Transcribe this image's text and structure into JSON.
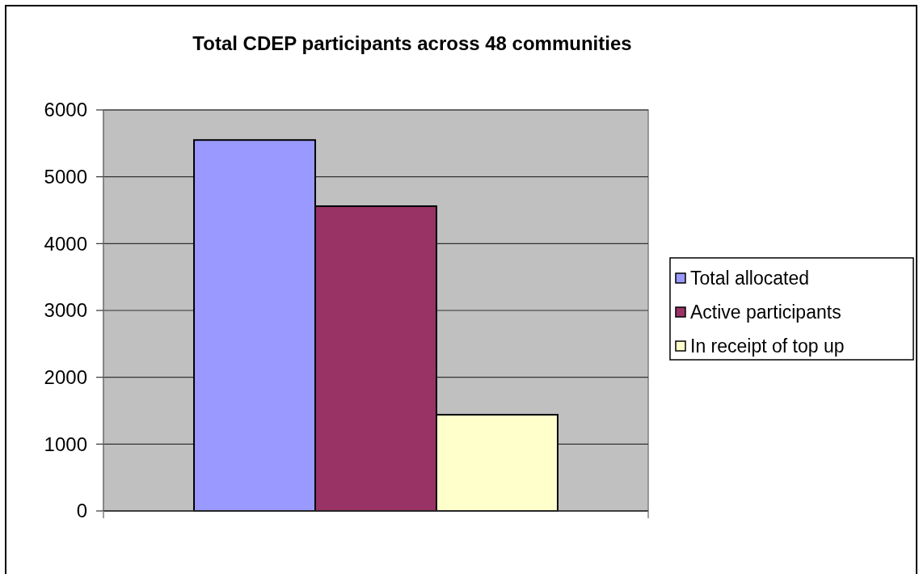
{
  "chart_data": {
    "type": "bar",
    "title": "Total CDEP participants across 48 communities",
    "categories": [
      null
    ],
    "series": [
      {
        "name": "Total allocated",
        "color": "#9999ff",
        "values": [
          5550
        ]
      },
      {
        "name": "Active participants",
        "color": "#993366",
        "values": [
          4560
        ]
      },
      {
        "name": "In receipt of top up",
        "color": "#ffffcc",
        "values": [
          1440
        ]
      }
    ],
    "ylim": [
      0,
      6000
    ],
    "yticks": [
      0,
      1000,
      2000,
      3000,
      4000,
      5000,
      6000
    ],
    "grid": "y",
    "legend": "right"
  }
}
